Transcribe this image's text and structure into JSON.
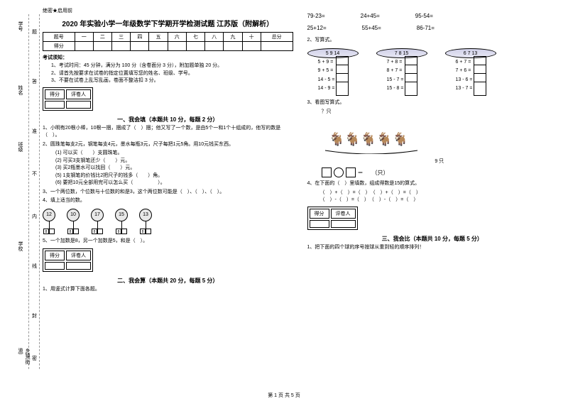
{
  "margin": {
    "l1": "学号",
    "l2": "姓名",
    "l3": "班级",
    "l4": "学校",
    "l5": "乡镇(街道)",
    "c1": "题",
    "c2": "答",
    "c3": "准",
    "c4": "不",
    "c5": "内",
    "c6": "线",
    "c7": "封",
    "c8": "密"
  },
  "header": {
    "secret": "绝密★启用前",
    "title": "2020 年实验小学一年级数学下学期开学检测试题 江苏版（附解析）"
  },
  "score": {
    "cols": [
      "题号",
      "一",
      "二",
      "三",
      "四",
      "五",
      "六",
      "七",
      "八",
      "九",
      "十",
      "总分"
    ],
    "row": "得分"
  },
  "notice": {
    "title": "考试须知：",
    "items": [
      "1、考试时间：45 分钟，满分为 100 分（含卷面分 3 分），附加题单独 20 分。",
      "2、请首先按要求在试卷的指定位置填写您的姓名、班级、学号。",
      "3、不要在试卷上乱写乱画，卷面不整洁扣 3 分。"
    ]
  },
  "scorer": {
    "c1": "得分",
    "c2": "评卷人"
  },
  "s1": {
    "title": "一、我会填（本题共 10 分，每题 2 分）",
    "q1": "1、小明有20根小棒，10根一捆，捆成了（　）捆；他又写了一个数，是由5个一和1个十组成的，他写的数是（　）。",
    "q2": "2、圆珠笔每支2元，钢笔每支4元，墨水每瓶3元，尺子每把1元5角。用10元钱买东西。",
    "q2a": "(1) 可以买（　　）支圆珠笔。",
    "q2b": "(2) 可买3支钢笔还少（　　）元。",
    "q2c": "(3) 买2瓶墨水可以找回（　　）元。",
    "q2d": "(5) 1支钢笔的价钱比2把尺子的钱多（　　）角。",
    "q2e": "(6) 要把10元全部用完可以怎么买（　　　　　）。",
    "q3": "3、一个两位数，个位数与十位数的和是3，这个两位数可能是（　）、（　）、（　）。",
    "q4": "4、填上适当的数。",
    "flags": [
      "12",
      "10",
      "17",
      "15",
      "13"
    ],
    "flagbase": "8",
    "q5": "5、一个加数是8，另一个加数是5，和是（　）。"
  },
  "s2": {
    "title": "二、我会算（本题共 20 分，每题 5 分）",
    "q1": "1、用竖式计算下面各题。",
    "calcs": [
      [
        "79-23=",
        "24+45=",
        "95-54="
      ],
      [
        "25+12=",
        "55+45=",
        "86-71="
      ]
    ],
    "q2": "2、写算式。",
    "cyls": [
      {
        "top": "5 9 14",
        "eqs": [
          "5 + 9 =",
          "9 + 5 =",
          "14 - 5 =",
          "14 - 9 ="
        ]
      },
      {
        "top": "7 8 15",
        "eqs": [
          "7 + 8 =",
          "8 + 7 =",
          "15 - 7 =",
          "15 - 8 ="
        ]
      },
      {
        "top": "6 7 13",
        "eqs": [
          "6 + 7 =",
          "7 + 6 =",
          "13 - 6 =",
          "13 - 7 ="
        ]
      }
    ],
    "q3": "3、看图写算式。",
    "q3label": "？只",
    "q3count": "9 只",
    "q3unit": "＝　　（只）",
    "q4": "4、在下面的（　）里填数，组成得数是15的算式。",
    "q4a": "（　）+（　）=（　）　（　）+（　）=（　）",
    "q4b": "（　）-（　）=（　）　（　）-（　）=（　）"
  },
  "s3": {
    "title": "三、我会比（本题共 10 分，每题 5 分）",
    "q1": "1、把下面的四个球的序号按球从重到轻的顺序排列！"
  },
  "footer": "第 1 页 共 5 页"
}
